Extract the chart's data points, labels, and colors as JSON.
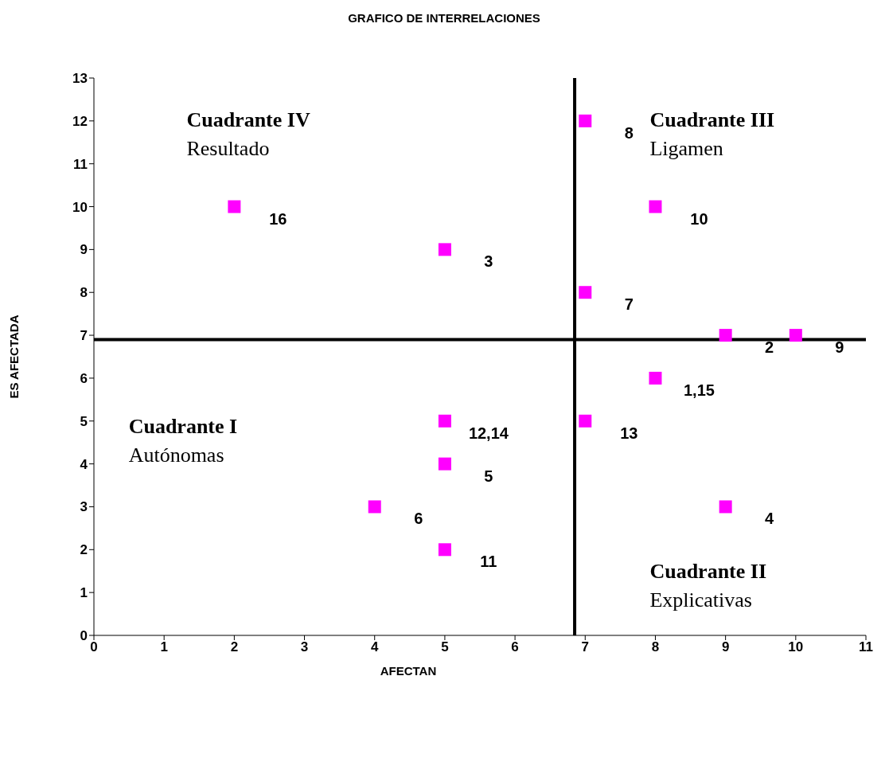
{
  "chart_data": {
    "type": "scatter",
    "title": "GRAFICO DE INTERRELACIONES",
    "xlabel": "AFECTAN",
    "ylabel": "ES AFECTADA",
    "x": [
      2,
      5,
      7,
      7,
      8,
      9,
      10,
      8,
      7,
      5,
      5,
      4,
      5,
      9
    ],
    "series": [
      {
        "color": "#ff00ff",
        "values": [
          10,
          9,
          12,
          8,
          10,
          7,
          7,
          6,
          5,
          5,
          4,
          3,
          2,
          3
        ]
      }
    ],
    "marker": "square",
    "grid": false,
    "xlim": [
      0,
      11
    ],
    "xticks": [
      0,
      1,
      2,
      3,
      4,
      5,
      6,
      7,
      8,
      9,
      10,
      11
    ],
    "ylim": [
      0,
      13
    ],
    "yticks": [
      0,
      1,
      2,
      3,
      4,
      5,
      6,
      7,
      8,
      9,
      10,
      11,
      12,
      13
    ],
    "ref_lines": [
      {
        "axis": "x",
        "value": 6.85,
        "color": "#000000"
      },
      {
        "axis": "y",
        "value": 6.9,
        "color": "#000000"
      }
    ],
    "annotations": [
      {
        "text": "16",
        "x": 2,
        "y": 10
      },
      {
        "text": "3",
        "x": 5,
        "y": 9
      },
      {
        "text": "8",
        "x": 7,
        "y": 12
      },
      {
        "text": "7",
        "x": 7,
        "y": 8
      },
      {
        "text": "10",
        "x": 8,
        "y": 10
      },
      {
        "text": "2",
        "x": 9,
        "y": 7
      },
      {
        "text": "9",
        "x": 10,
        "y": 7
      },
      {
        "text": "1,15",
        "x": 8,
        "y": 6
      },
      {
        "text": "13",
        "x": 7,
        "y": 5
      },
      {
        "text": "12,14",
        "x": 5,
        "y": 5
      },
      {
        "text": "5",
        "x": 5,
        "y": 4
      },
      {
        "text": "6",
        "x": 4,
        "y": 3
      },
      {
        "text": "11",
        "x": 5,
        "y": 2
      },
      {
        "text": "4",
        "x": 9,
        "y": 3
      },
      "Cuadrante IV\nResultado",
      "Cuadrante III\nLigamen",
      "Cuadrante I\nAutónomas",
      "Cuadrante II\nExplicativas"
    ]
  }
}
